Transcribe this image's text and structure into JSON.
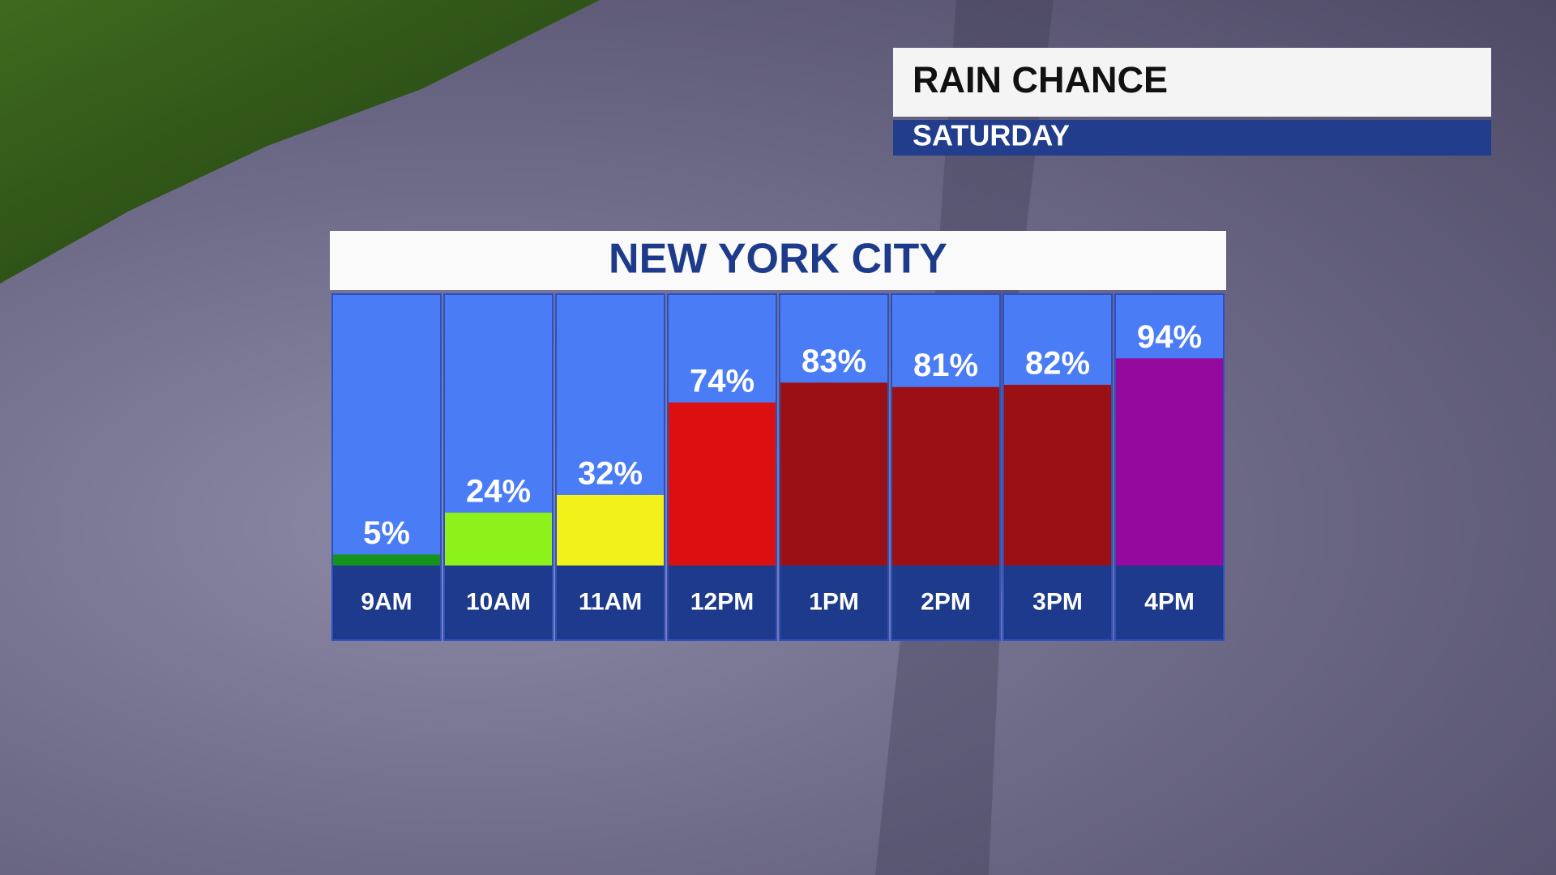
{
  "header": {
    "title": "RAIN CHANCE",
    "subtitle": "SATURDAY"
  },
  "chart_data": {
    "type": "bar",
    "title": "NEW YORK CITY",
    "categories": [
      "9AM",
      "10AM",
      "11AM",
      "12PM",
      "1PM",
      "2PM",
      "3PM",
      "4PM"
    ],
    "values": [
      5,
      24,
      32,
      74,
      83,
      81,
      82,
      94
    ],
    "value_labels": [
      "5%",
      "24%",
      "32%",
      "74%",
      "83%",
      "81%",
      "82%",
      "94%"
    ],
    "colors": [
      "#14941c",
      "#8cf21a",
      "#f2f21a",
      "#dc1010",
      "#9a1014",
      "#9a1014",
      "#9a1014",
      "#940a9e"
    ],
    "ylim": [
      0,
      100
    ]
  }
}
